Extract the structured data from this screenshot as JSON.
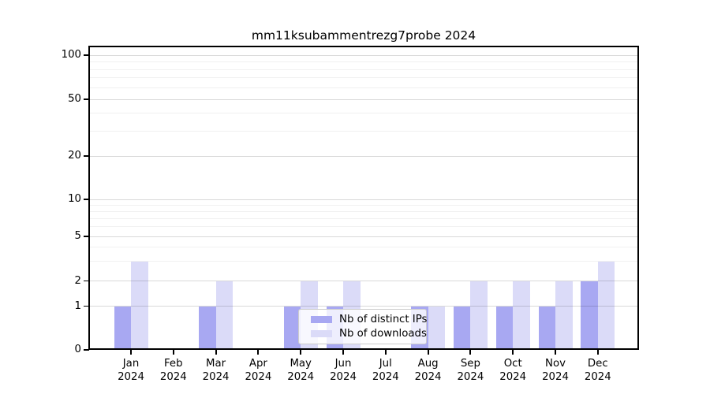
{
  "title": "mm11ksubammentrezg7probe 2024",
  "colors": {
    "distinct_ips_bar": "#a8a8f2",
    "downloads_bar": "#dbdbf8",
    "grid_major": "rgba(0,0,0,0.15)",
    "grid_minor": "rgba(0,0,0,0.055)",
    "axis": "#000000",
    "legend_border": "#cccccc"
  },
  "legend": {
    "items": [
      {
        "label": "Nb of distinct IPs",
        "color_key": "distinct_ips_bar"
      },
      {
        "label": "Nb of downloads",
        "color_key": "downloads_bar"
      }
    ]
  },
  "y_axis": {
    "tick_labels": [
      "100",
      "50",
      "20",
      "10",
      "5",
      "2",
      "1",
      "0"
    ],
    "tick_values": [
      100,
      50,
      20,
      10,
      5,
      2,
      1,
      0
    ]
  },
  "x_axis": {
    "ticks": [
      {
        "line1": "Jan",
        "line2": "2024"
      },
      {
        "line1": "Feb",
        "line2": "2024"
      },
      {
        "line1": "Mar",
        "line2": "2024"
      },
      {
        "line1": "Apr",
        "line2": "2024"
      },
      {
        "line1": "May",
        "line2": "2024"
      },
      {
        "line1": "Jun",
        "line2": "2024"
      },
      {
        "line1": "Jul",
        "line2": "2024"
      },
      {
        "line1": "Aug",
        "line2": "2024"
      },
      {
        "line1": "Sep",
        "line2": "2024"
      },
      {
        "line1": "Oct",
        "line2": "2024"
      },
      {
        "line1": "Nov",
        "line2": "2024"
      },
      {
        "line1": "Dec",
        "line2": "2024"
      }
    ]
  },
  "chart_data": {
    "type": "bar",
    "title": "mm11ksubammentrezg7probe 2024",
    "categories": [
      "Jan 2024",
      "Feb 2024",
      "Mar 2024",
      "Apr 2024",
      "May 2024",
      "Jun 2024",
      "Jul 2024",
      "Aug 2024",
      "Sep 2024",
      "Oct 2024",
      "Nov 2024",
      "Dec 2024"
    ],
    "series": [
      {
        "name": "Nb of distinct IPs",
        "values": [
          1,
          0,
          1,
          0,
          1,
          1,
          0,
          1,
          1,
          1,
          1,
          2
        ]
      },
      {
        "name": "Nb of downloads",
        "values": [
          3,
          0,
          2,
          0,
          2,
          2,
          0,
          1,
          2,
          2,
          2,
          3
        ]
      }
    ],
    "xlabel": "",
    "ylabel": "",
    "ylim": [
      0,
      100
    ],
    "yscale": "symlog-like with ticks 0,1,2,5,10,20,50,100",
    "grid": true,
    "legend_position": "lower center",
    "grid_major_values": [
      1,
      2,
      5,
      10,
      20,
      50,
      100
    ],
    "grid_minor_values": [
      3,
      4,
      6,
      7,
      8,
      9,
      30,
      40,
      60,
      70,
      80,
      90
    ]
  }
}
